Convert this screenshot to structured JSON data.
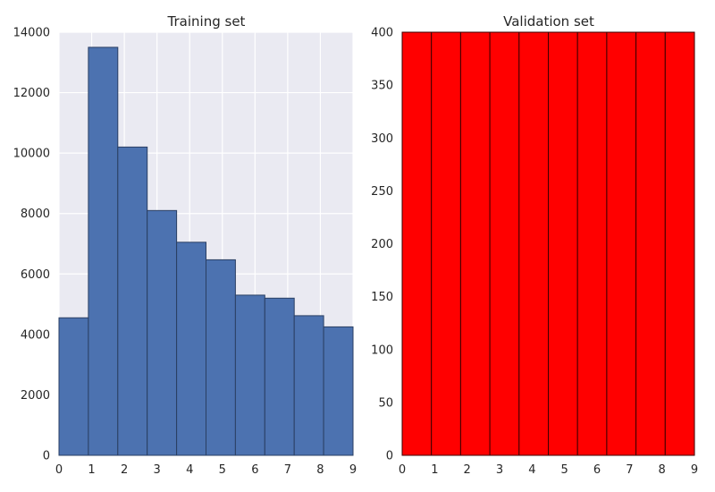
{
  "colors": {
    "train_bar": "#4c72b0",
    "train_edge": "#2a3f63",
    "train_bg": "#eaeaf2",
    "grid": "#ffffff",
    "val_bar": "#ff0000",
    "val_edge": "#3a0000"
  },
  "chart_data": [
    {
      "type": "bar",
      "title": "Training set",
      "xlabel": "",
      "ylabel": "",
      "xlim": [
        0,
        9
      ],
      "ylim": [
        0,
        14000
      ],
      "xticks": [
        "0",
        "1",
        "2",
        "3",
        "4",
        "5",
        "6",
        "7",
        "8",
        "9"
      ],
      "yticks": [
        "0",
        "2000",
        "4000",
        "6000",
        "8000",
        "10000",
        "12000",
        "14000"
      ],
      "grid": true,
      "bins": [
        {
          "x0": 0.0,
          "x1": 0.9,
          "value": 4550
        },
        {
          "x0": 0.9,
          "x1": 1.8,
          "value": 13500
        },
        {
          "x0": 1.8,
          "x1": 2.7,
          "value": 10200
        },
        {
          "x0": 2.7,
          "x1": 3.6,
          "value": 8100
        },
        {
          "x0": 3.6,
          "x1": 4.5,
          "value": 7050
        },
        {
          "x0": 4.5,
          "x1": 5.4,
          "value": 6470
        },
        {
          "x0": 5.4,
          "x1": 6.3,
          "value": 5300
        },
        {
          "x0": 6.3,
          "x1": 7.2,
          "value": 5200
        },
        {
          "x0": 7.2,
          "x1": 8.1,
          "value": 4620
        },
        {
          "x0": 8.1,
          "x1": 9.0,
          "value": 4250
        }
      ]
    },
    {
      "type": "bar",
      "title": "Validation set",
      "xlabel": "",
      "ylabel": "",
      "xlim": [
        0,
        9
      ],
      "ylim": [
        0,
        400
      ],
      "xticks": [
        "0",
        "1",
        "2",
        "3",
        "4",
        "5",
        "6",
        "7",
        "8",
        "9"
      ],
      "yticks": [
        "0",
        "50",
        "100",
        "150",
        "200",
        "250",
        "300",
        "350",
        "400"
      ],
      "grid": false,
      "bins": [
        {
          "x0": 0.0,
          "x1": 0.9,
          "value": 400
        },
        {
          "x0": 0.9,
          "x1": 1.8,
          "value": 400
        },
        {
          "x0": 1.8,
          "x1": 2.7,
          "value": 400
        },
        {
          "x0": 2.7,
          "x1": 3.6,
          "value": 400
        },
        {
          "x0": 3.6,
          "x1": 4.5,
          "value": 400
        },
        {
          "x0": 4.5,
          "x1": 5.4,
          "value": 400
        },
        {
          "x0": 5.4,
          "x1": 6.3,
          "value": 400
        },
        {
          "x0": 6.3,
          "x1": 7.2,
          "value": 400
        },
        {
          "x0": 7.2,
          "x1": 8.1,
          "value": 400
        },
        {
          "x0": 8.1,
          "x1": 9.0,
          "value": 400
        }
      ]
    }
  ]
}
